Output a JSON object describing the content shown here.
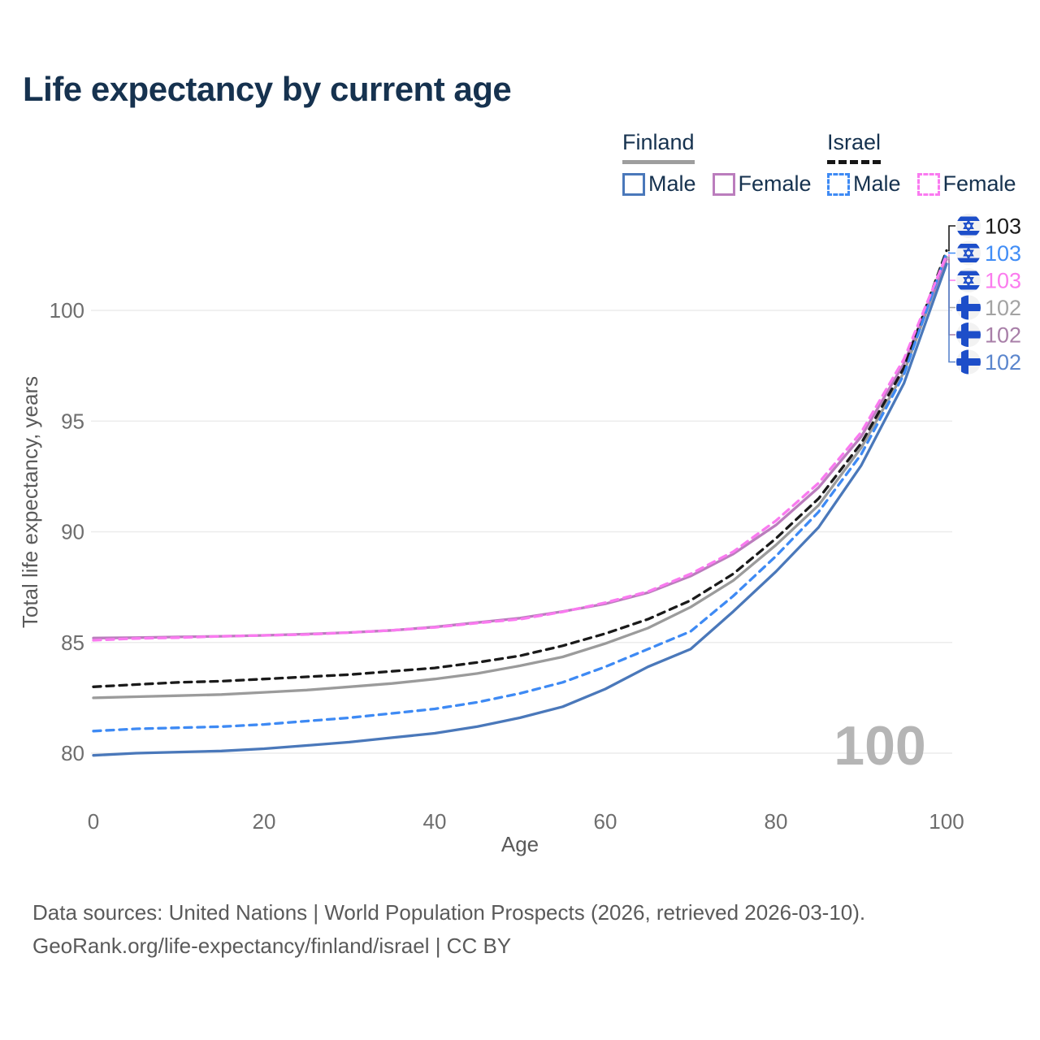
{
  "title": "Life expectancy by current age",
  "legend": {
    "groups": [
      {
        "label": "Finland",
        "line_style": "solid",
        "underline_color": "#9e9e9e",
        "items": [
          {
            "label": "Male",
            "color": "#4a78ba",
            "dashed": false
          },
          {
            "label": "Female",
            "color": "#bb7dbd",
            "dashed": false
          }
        ]
      },
      {
        "label": "Israel",
        "line_style": "dashed",
        "underline_color": "#161616",
        "items": [
          {
            "label": "Male",
            "color": "#3e8af4",
            "dashed": true
          },
          {
            "label": "Female",
            "color": "#fa7af0",
            "dashed": true
          }
        ]
      }
    ]
  },
  "watermark": "100",
  "chart_data": {
    "type": "line",
    "title": "Life expectancy by current age",
    "xlabel": "Age",
    "ylabel": "Total life expectancy, years",
    "xlim": [
      0,
      100
    ],
    "ylim": [
      78,
      104
    ],
    "x_ticks": [
      0,
      20,
      40,
      60,
      80,
      100
    ],
    "y_ticks": [
      80,
      85,
      90,
      95,
      100
    ],
    "grid": "horizontal",
    "legend_position": "top-right",
    "x": [
      0,
      5,
      10,
      15,
      20,
      25,
      30,
      35,
      40,
      45,
      50,
      55,
      60,
      65,
      70,
      75,
      80,
      85,
      90,
      95,
      100
    ],
    "series": [
      {
        "name": "Finland total",
        "country": "Finland",
        "sex": "all",
        "color": "#9b9b9b",
        "label_color": "#a3a3a3",
        "dashed": false,
        "flag": "finland",
        "end_label": "102",
        "values": [
          82.5,
          82.55,
          82.6,
          82.65,
          82.75,
          82.85,
          83.0,
          83.15,
          83.35,
          83.6,
          83.95,
          84.35,
          84.95,
          85.65,
          86.6,
          87.8,
          89.4,
          91.2,
          93.8,
          97.2,
          102.4
        ]
      },
      {
        "name": "Finland female",
        "country": "Finland",
        "sex": "female",
        "color": "#bb7dbd",
        "label_color": "#a87fa8",
        "dashed": false,
        "flag": "finland",
        "end_label": "102",
        "values": [
          85.2,
          85.22,
          85.25,
          85.28,
          85.32,
          85.38,
          85.45,
          85.55,
          85.7,
          85.9,
          86.1,
          86.4,
          86.75,
          87.25,
          88.0,
          89.0,
          90.3,
          92.0,
          94.3,
          97.6,
          102.3
        ]
      },
      {
        "name": "Finland male",
        "country": "Finland",
        "sex": "male",
        "color": "#4a78ba",
        "label_color": "#5b86cd",
        "dashed": false,
        "flag": "finland",
        "end_label": "102",
        "values": [
          79.9,
          80.0,
          80.05,
          80.1,
          80.2,
          80.35,
          80.5,
          80.7,
          80.9,
          81.2,
          81.6,
          82.1,
          82.9,
          83.9,
          84.7,
          86.4,
          88.2,
          90.2,
          93.0,
          96.7,
          102.1
        ]
      },
      {
        "name": "Israel total",
        "country": "Israel",
        "sex": "all",
        "color": "#1a1a1a",
        "label_color": "#1a1a1a",
        "dashed": true,
        "flag": "israel",
        "end_label": "103",
        "values": [
          83.0,
          83.1,
          83.2,
          83.25,
          83.35,
          83.45,
          83.55,
          83.7,
          83.85,
          84.1,
          84.4,
          84.85,
          85.4,
          86.05,
          86.9,
          88.1,
          89.7,
          91.5,
          94.0,
          97.4,
          102.7
        ]
      },
      {
        "name": "Israel male",
        "country": "Israel",
        "sex": "male",
        "color": "#3e8af4",
        "label_color": "#418df6",
        "dashed": true,
        "flag": "israel",
        "end_label": "103",
        "values": [
          81.0,
          81.1,
          81.15,
          81.2,
          81.3,
          81.45,
          81.6,
          81.8,
          82.0,
          82.3,
          82.7,
          83.2,
          83.9,
          84.7,
          85.5,
          87.1,
          88.9,
          90.9,
          93.5,
          97.1,
          102.6
        ]
      },
      {
        "name": "Israel female",
        "country": "Israel",
        "sex": "female",
        "color": "#fa7af0",
        "label_color": "#fb7cee",
        "dashed": true,
        "flag": "israel",
        "end_label": "103",
        "values": [
          85.1,
          85.18,
          85.22,
          85.28,
          85.32,
          85.36,
          85.45,
          85.55,
          85.68,
          85.88,
          86.05,
          86.38,
          86.8,
          87.3,
          88.1,
          89.1,
          90.5,
          92.2,
          94.5,
          97.8,
          102.5
        ]
      }
    ]
  },
  "footer": {
    "line1": "Data sources: United Nations | World Population Prospects (2026, retrieved 2026-03-10).",
    "line2": "GeoRank.org/life-expectancy/finland/israel | CC BY"
  }
}
